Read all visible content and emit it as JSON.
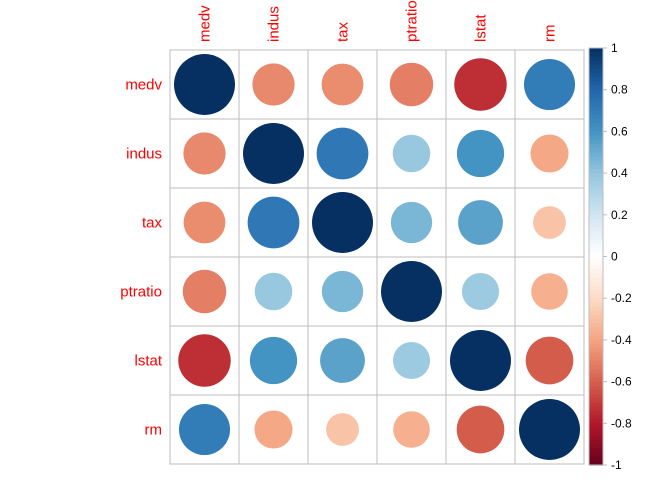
{
  "chart_data": {
    "type": "heatmap",
    "variables": [
      "medv",
      "indus",
      "tax",
      "ptratio",
      "lstat",
      "rm"
    ],
    "matrix": [
      [
        1.0,
        -0.48,
        -0.47,
        -0.51,
        -0.74,
        0.7
      ],
      [
        -0.48,
        1.0,
        0.72,
        0.38,
        0.6,
        -0.39
      ],
      [
        -0.47,
        0.72,
        1.0,
        0.46,
        0.54,
        -0.29
      ],
      [
        -0.51,
        0.38,
        0.46,
        1.0,
        0.37,
        -0.36
      ],
      [
        -0.74,
        0.6,
        0.54,
        0.37,
        1.0,
        -0.61
      ],
      [
        0.7,
        -0.39,
        -0.29,
        -0.36,
        -0.61,
        1.0
      ]
    ],
    "colorbar": {
      "min": -1,
      "max": 1,
      "ticks": [
        "-1",
        "-0.8",
        "-0.6",
        "-0.4",
        "-0.2",
        "0",
        "0.2",
        "0.4",
        "0.6",
        "0.8",
        "1"
      ],
      "colors": [
        "#67001F",
        "#B2182B",
        "#D6604D",
        "#F4A582",
        "#FDDBC7",
        "#FFFFFF",
        "#D1E5F0",
        "#92C5DE",
        "#4393C3",
        "#2166AC",
        "#053061"
      ]
    },
    "label_color": "#FF0000",
    "grid_color": "#BEBEBE",
    "method": "circle"
  }
}
